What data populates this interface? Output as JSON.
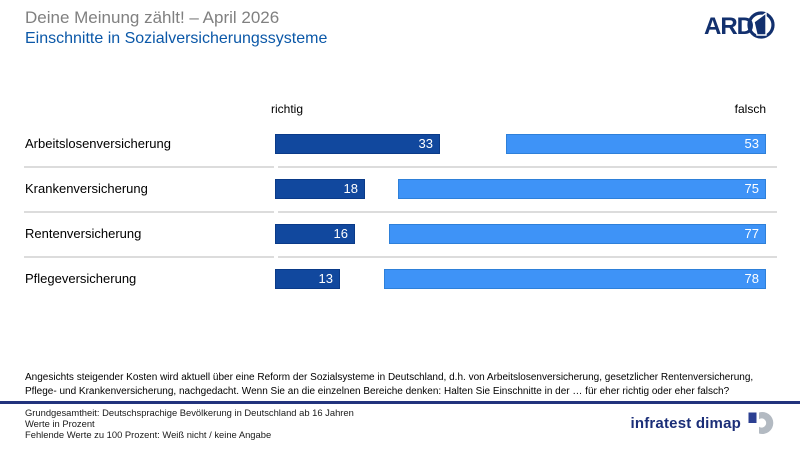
{
  "header": {
    "supertitle": "Deine Meinung zählt! – April 2026",
    "title": "Einschnitte in Sozialversicherungssysteme",
    "broadcaster": "ARD"
  },
  "chart_data": {
    "type": "bar",
    "orientation": "horizontal",
    "title": "Einschnitte in Sozialversicherungssysteme",
    "categories": [
      "Arbeitslosenversicherung",
      "Krankenversicherung",
      "Rentenversicherung",
      "Pflegeversicherung"
    ],
    "series": [
      {
        "name": "richtig",
        "color": "#11489E",
        "values": [
          33,
          18,
          16,
          13
        ]
      },
      {
        "name": "falsch",
        "color": "#3E93F7",
        "values": [
          53,
          75,
          77,
          78
        ]
      }
    ],
    "value_unit": "Prozent",
    "xlim": [
      0,
      100
    ],
    "legend_position": "column-headers",
    "grid": false
  },
  "question": "Angesichts steigender Kosten wird aktuell über eine Reform der Sozialsysteme in Deutschland, d.h. von Arbeitslosenversicherung, gesetzlicher Rentenversicherung, Pflege- und Krankenversicherung, nachgedacht. Wenn Sie an die einzelnen Bereiche denken: Halten Sie Einschnitte in der … für eher richtig oder eher falsch?",
  "footer": {
    "lines": [
      "Grundgesamtheit: Deutschsprachige Bevölkerung in Deutschland ab 16 Jahren",
      "Werte in Prozent",
      "Fehlende Werte zu 100 Prozent: Weiß nicht / keine Angabe"
    ],
    "brand": "infratest dimap"
  },
  "colors": {
    "richtig_bar": "#11489E",
    "falsch_bar": "#3E93F7",
    "title_blue": "#0B58A8",
    "supertitle_gray": "#808080",
    "divider_navy": "#22337D",
    "row_separator": "#DCDCDC",
    "brand_navy": "#1B2E78"
  }
}
